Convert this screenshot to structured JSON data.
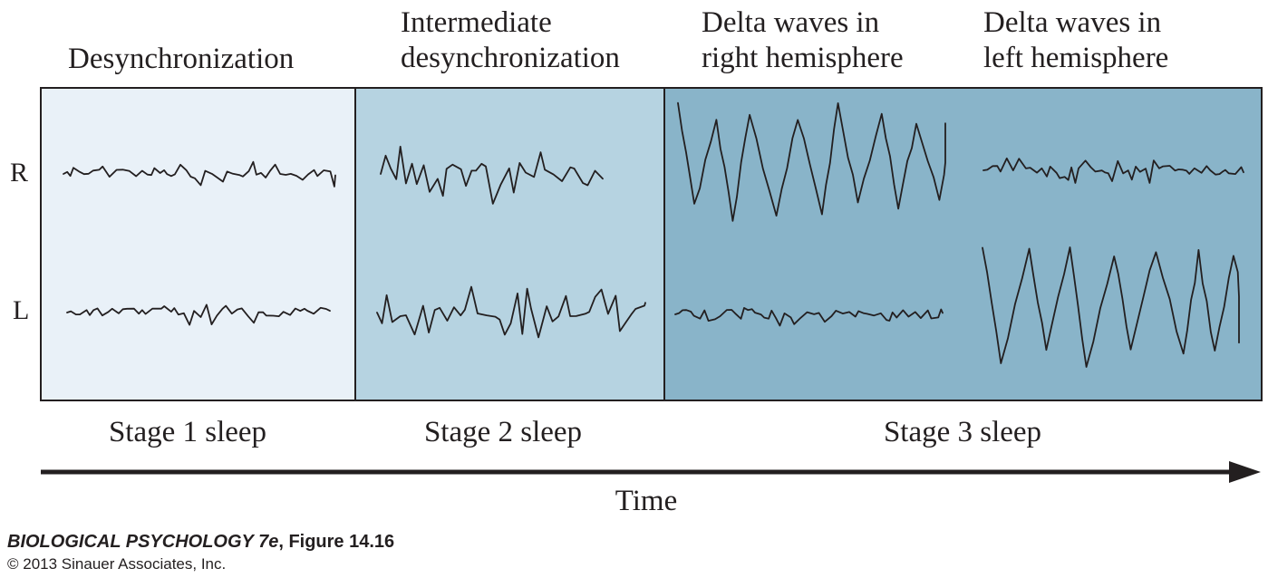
{
  "headers": {
    "stage1": "Desynchronization",
    "stage2_line1": "Intermediate",
    "stage2_line2": "desynchronization",
    "stage3_right_line1": "Delta waves in",
    "stage3_right_line2": "right hemisphere",
    "stage3_left_line1": "Delta waves in",
    "stage3_left_line2": "left hemisphere"
  },
  "channels": {
    "right": "R",
    "left": "L"
  },
  "stages": {
    "stage1": "Stage 1 sleep",
    "stage2": "Stage 2 sleep",
    "stage3": "Stage 3 sleep"
  },
  "axis": {
    "label": "Time"
  },
  "credit": {
    "title": "BIOLOGICAL PSYCHOLOGY 7e",
    "figure": ", Figure 14.16",
    "copyright": "© 2013 Sinauer Associates, Inc."
  },
  "colors": {
    "stage1_panel": "#e9f1f8",
    "stage2_panel": "#b6d3e1",
    "stage3_panel": "#89b4c9",
    "trace": "#231f20",
    "border": "#231f20"
  },
  "traces": [
    {
      "panel": "stage1",
      "channel": "R",
      "pattern": "low-amplitude desynchronized"
    },
    {
      "panel": "stage1",
      "channel": "L",
      "pattern": "low-amplitude desynchronized"
    },
    {
      "panel": "stage2",
      "channel": "R",
      "pattern": "intermediate desynchronized"
    },
    {
      "panel": "stage2",
      "channel": "L",
      "pattern": "intermediate desynchronized"
    },
    {
      "panel": "stage3",
      "channel": "R",
      "pattern": "delta waves"
    },
    {
      "panel": "stage3",
      "channel": "L",
      "pattern": "low-amplitude desynchronized"
    },
    {
      "panel": "stage3b",
      "channel": "R",
      "pattern": "low-amplitude desynchronized"
    },
    {
      "panel": "stage3b",
      "channel": "L",
      "pattern": "delta waves"
    }
  ]
}
